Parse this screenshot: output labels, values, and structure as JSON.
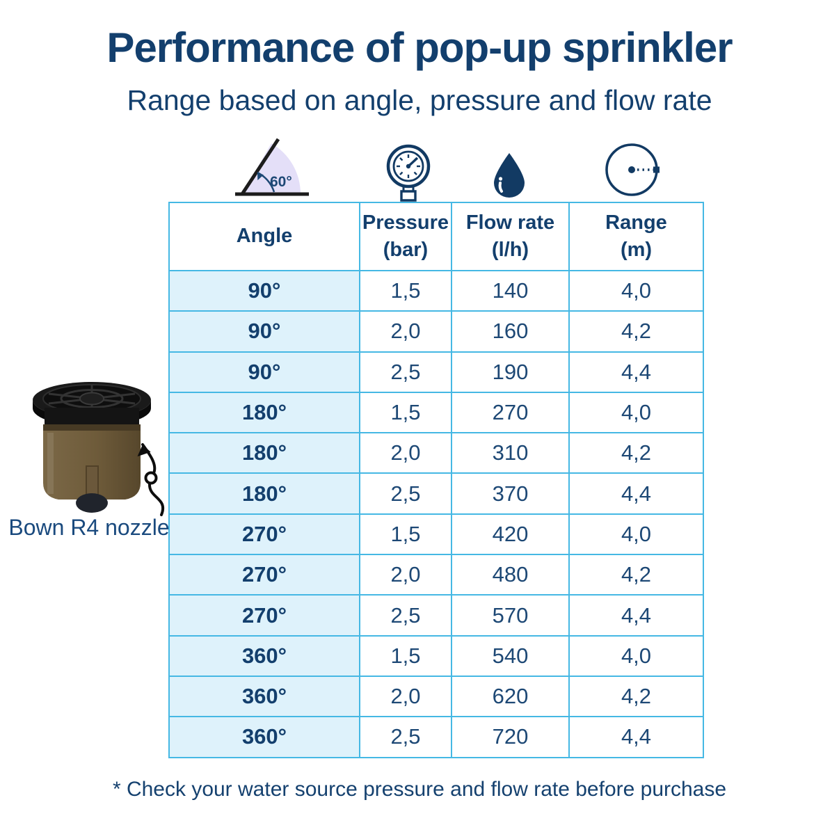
{
  "header": {
    "title": "Performance of pop-up sprinkler",
    "subtitle": "Range based on angle, pressure and flow rate"
  },
  "icon_row": {
    "angle_icon_label": "60°",
    "icons": [
      "angle-60-icon",
      "pressure-gauge-icon",
      "water-drop-icon",
      "range-circle-icon"
    ]
  },
  "chart_data": {
    "type": "table",
    "title": "Performance of pop-up sprinkler",
    "subtitle": "Range based on angle, pressure and flow rate",
    "columns": [
      {
        "label": "Angle",
        "unit": ""
      },
      {
        "label": "Pressure",
        "unit": "(bar)"
      },
      {
        "label": "Flow rate",
        "unit": "(l/h)"
      },
      {
        "label": "Range",
        "unit": "(m)"
      }
    ],
    "rows": [
      [
        "90°",
        "1,5",
        "140",
        "4,0"
      ],
      [
        "90°",
        "2,0",
        "160",
        "4,2"
      ],
      [
        "90°",
        "2,5",
        "190",
        "4,4"
      ],
      [
        "180°",
        "1,5",
        "270",
        "4,0"
      ],
      [
        "180°",
        "2,0",
        "310",
        "4,2"
      ],
      [
        "180°",
        "2,5",
        "370",
        "4,4"
      ],
      [
        "270°",
        "1,5",
        "420",
        "4,0"
      ],
      [
        "270°",
        "2,0",
        "480",
        "4,2"
      ],
      [
        "270°",
        "2,5",
        "570",
        "4,4"
      ],
      [
        "360°",
        "1,5",
        "540",
        "4,0"
      ],
      [
        "360°",
        "2,0",
        "620",
        "4,2"
      ],
      [
        "360°",
        "2,5",
        "720",
        "4,4"
      ]
    ]
  },
  "nozzle": {
    "label": "Bown R4 nozzle"
  },
  "footnote": "* Check your water source pressure and flow rate before purchase",
  "colors": {
    "navy_text": "#133f6d",
    "cell_text": "#1d4875",
    "table_border": "#45b8e4",
    "angle_column_bg": "#def2fb",
    "angle_wedge_fill": "#e4dff8",
    "icon_navy": "#123a63",
    "nozzle_brown": "#6e5b3a",
    "nozzle_black": "#161616"
  }
}
